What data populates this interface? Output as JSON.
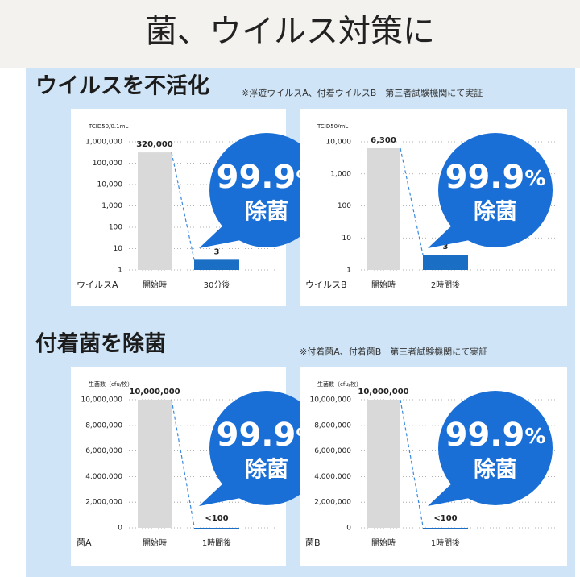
{
  "title": "菌、ウイルス対策に",
  "sections": [
    {
      "heading": "ウイルスを不活化",
      "note": "※浮遊ウイルスA、付着ウイルスB　第三者試験機関にて実証"
    },
    {
      "heading": "付着菌を除菌",
      "note": "※付着菌A、付着菌B　第三者試験機関にて実証"
    }
  ],
  "chart_data": [
    {
      "type": "bar",
      "y_label": "TCID50/0.1mL",
      "series_label": "ウイルスA",
      "categories": [
        "開始時",
        "30分後"
      ],
      "values": [
        320000,
        3
      ],
      "value_labels": [
        "320,000",
        "3"
      ],
      "colors": [
        "#d9d9d9",
        "#1a6fc4"
      ],
      "log_scale": true,
      "grid": true,
      "ylim": [
        1,
        1000000
      ],
      "yticks": [
        1,
        10,
        100,
        {
          "value": 1000,
          "label": "1,000"
        },
        {
          "value": 10000,
          "label": "10,000"
        },
        {
          "value": 100000,
          "label": "100,000"
        },
        {
          "value": 1000000,
          "label": "1,000,000"
        }
      ],
      "badge": {
        "number": "99.9",
        "unit": "%",
        "text": "除菌"
      }
    },
    {
      "type": "bar",
      "y_label": "TCID50/mL",
      "series_label": "ウイルスB",
      "categories": [
        "開始時",
        "2時間後"
      ],
      "values": [
        6300,
        3
      ],
      "value_labels": [
        "6,300",
        "3"
      ],
      "colors": [
        "#d9d9d9",
        "#1a6fc4"
      ],
      "log_scale": true,
      "grid": true,
      "ylim": [
        1,
        10000
      ],
      "yticks": [
        1,
        10,
        100,
        {
          "value": 1000,
          "label": "1,000"
        },
        {
          "value": 10000,
          "label": "10,000"
        }
      ],
      "badge": {
        "number": "99.9",
        "unit": "%",
        "text": "除菌"
      }
    },
    {
      "type": "bar",
      "y_label": "生菌数（cfu/枚）",
      "series_label": "菌A",
      "categories": [
        "開始時",
        "1時間後"
      ],
      "values": [
        10000000,
        100
      ],
      "value_labels": [
        "10,000,000",
        "<100"
      ],
      "colors": [
        "#d9d9d9",
        "#1a6fc4"
      ],
      "log_scale": false,
      "grid": true,
      "ylim": [
        0,
        10000000
      ],
      "yticks": [
        0,
        {
          "value": 2000000,
          "label": "2,000,000"
        },
        {
          "value": 4000000,
          "label": "4,000,000"
        },
        {
          "value": 6000000,
          "label": "6,000,000"
        },
        {
          "value": 8000000,
          "label": "8,000,000"
        },
        {
          "value": 10000000,
          "label": "10,000,000"
        }
      ],
      "badge": {
        "number": "99.9",
        "unit": "%",
        "text": "除菌"
      }
    },
    {
      "type": "bar",
      "y_label": "生菌数（cfu/枚）",
      "series_label": "菌B",
      "categories": [
        "開始時",
        "1時間後"
      ],
      "values": [
        10000000,
        100
      ],
      "value_labels": [
        "10,000,000",
        "<100"
      ],
      "colors": [
        "#d9d9d9",
        "#1a6fc4"
      ],
      "log_scale": false,
      "grid": true,
      "ylim": [
        0,
        10000000
      ],
      "yticks": [
        0,
        {
          "value": 2000000,
          "label": "2,000,000"
        },
        {
          "value": 4000000,
          "label": "4,000,000"
        },
        {
          "value": 6000000,
          "label": "6,000,000"
        },
        {
          "value": 8000000,
          "label": "8,000,000"
        },
        {
          "value": 10000000,
          "label": "10,000,000"
        }
      ],
      "badge": {
        "number": "99.9",
        "unit": "%",
        "text": "除菌"
      }
    }
  ]
}
